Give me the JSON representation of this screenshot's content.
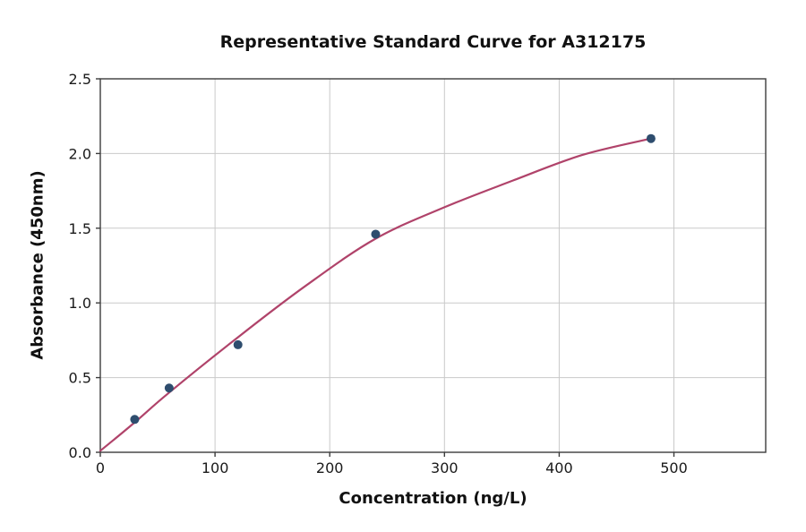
{
  "figure": {
    "background_color": "#ffffff"
  },
  "chart_data": {
    "type": "scatter",
    "title": "Representative Standard Curve for A312175",
    "xlabel": "Concentration (ng/L)",
    "ylabel": "Absorbance (450nm)",
    "xlim": [
      0,
      580
    ],
    "ylim": [
      0,
      2.5
    ],
    "x_ticks": [
      0,
      100,
      200,
      300,
      400,
      500
    ],
    "x_tick_labels": [
      "0",
      "100",
      "200",
      "300",
      "400",
      "500"
    ],
    "y_ticks": [
      0.0,
      0.5,
      1.0,
      1.5,
      2.0,
      2.5
    ],
    "y_tick_labels": [
      "0.0",
      "0.5",
      "1.0",
      "1.5",
      "2.0",
      "2.5"
    ],
    "grid": true,
    "legend_position": "none",
    "series": [
      {
        "name": "standard-points",
        "type": "scatter",
        "x": [
          30,
          60,
          120,
          240,
          480
        ],
        "y": [
          0.22,
          0.43,
          0.72,
          1.46,
          2.1
        ],
        "marker_color": "#2e4d6e"
      },
      {
        "name": "fitted-curve",
        "type": "line",
        "x": [
          0,
          30,
          60,
          120,
          180,
          240,
          300,
          360,
          420,
          480
        ],
        "y": [
          0.01,
          0.2,
          0.4,
          0.77,
          1.12,
          1.43,
          1.64,
          1.82,
          1.99,
          2.1
        ],
        "line_color": "#b0436a"
      }
    ],
    "colors": {
      "grid_color": "#c9c9c9",
      "spine_color": "#3c3c3c",
      "tick_text_color": "#1a1a1a"
    }
  }
}
